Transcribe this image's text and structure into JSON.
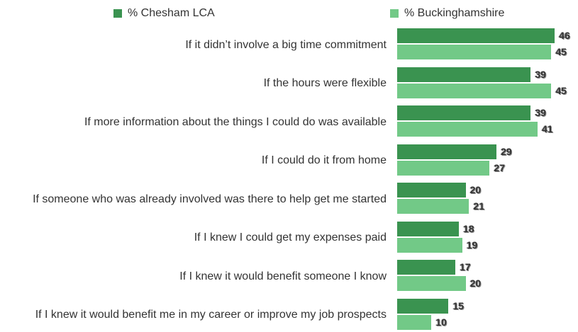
{
  "chart_data": {
    "type": "bar",
    "orientation": "horizontal",
    "categories": [
      "If it didn’t involve a big time commitment",
      "If the hours were flexible",
      "If more information about the things I could do was available",
      "If I could do it from home",
      "If someone who was already involved was there to help get me started",
      "If I knew I could get my expenses paid",
      "If I knew it would benefit someone I know",
      "If I knew it would benefit me in my career or improve my job prospects"
    ],
    "series": [
      {
        "name": "% Chesham LCA",
        "color": "#3a9350",
        "values": [
          46,
          39,
          39,
          29,
          20,
          18,
          17,
          15
        ]
      },
      {
        "name": "% Buckinghamshire",
        "color": "#72c987",
        "values": [
          45,
          45,
          41,
          27,
          21,
          19,
          20,
          10
        ]
      }
    ],
    "legend": "top"
  }
}
